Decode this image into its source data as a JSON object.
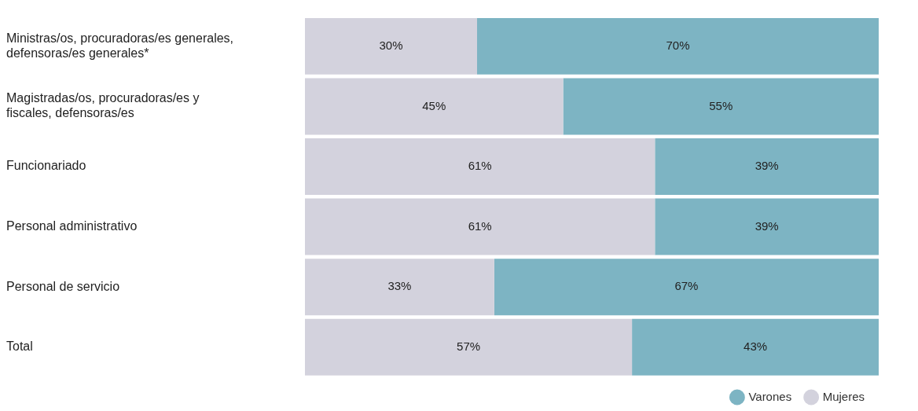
{
  "chart_data": {
    "type": "bar",
    "orientation": "horizontal",
    "stacked": true,
    "legend": "bottom right",
    "categories": [
      "Ministras/os, procuradoras/es generales, defensoras/es generales*",
      "Magistradas/os, procuradoras/es y fiscales, defensoras/es",
      "Funcionariado",
      "Personal administrativo",
      "Personal de servicio",
      "Total"
    ],
    "series": [
      {
        "name": "Mujeres",
        "color": "#d3d2dd",
        "values": [
          30,
          45,
          61,
          61,
          33,
          57
        ],
        "value_labels": [
          "30%",
          "45%",
          "61%",
          "61%",
          "33%",
          "57%"
        ]
      },
      {
        "name": "Varones",
        "color": "#7db4c3",
        "values": [
          70,
          55,
          39,
          39,
          67,
          43
        ],
        "value_labels": [
          "70%",
          "55%",
          "39%",
          "39%",
          "67%",
          "43%"
        ]
      }
    ]
  }
}
